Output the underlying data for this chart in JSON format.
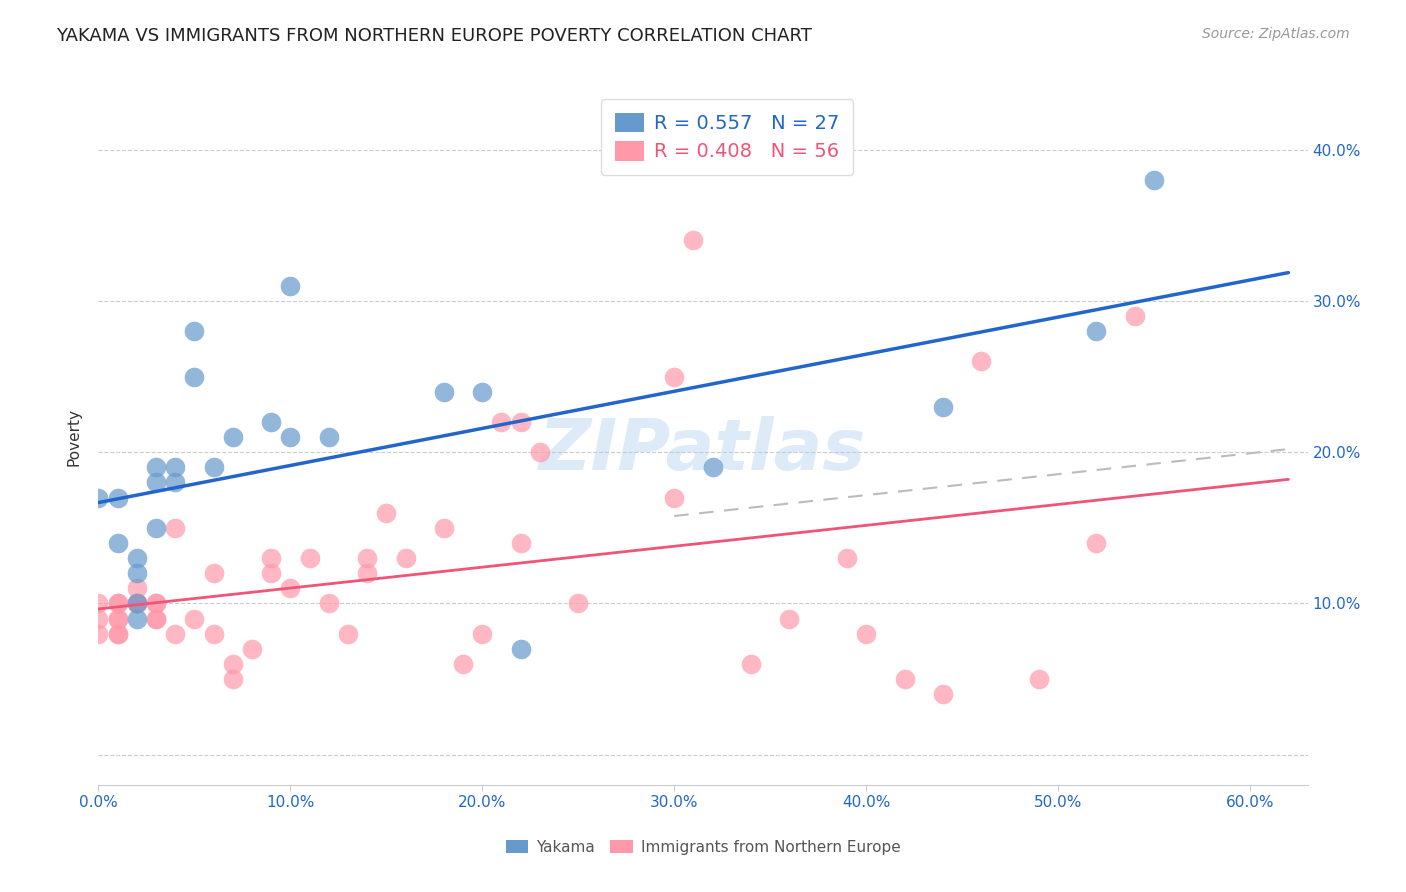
{
  "title": "YAKAMA VS IMMIGRANTS FROM NORTHERN EUROPE POVERTY CORRELATION CHART",
  "source": "Source: ZipAtlas.com",
  "ylabel": "Poverty",
  "xlim": [
    0.0,
    0.63
  ],
  "ylim": [
    -0.02,
    0.44
  ],
  "yakama_R": "0.557",
  "yakama_N": "27",
  "immigrants_R": "0.408",
  "immigrants_N": "56",
  "yakama_color": "#6699CC",
  "immigrants_color": "#FF99AA",
  "line_blue": "#2266CC",
  "line_pink": "#EE5577",
  "watermark": "ZIPatlas",
  "watermark_color": "#AACCEE",
  "yakama_x": [
    0.0,
    0.01,
    0.01,
    0.02,
    0.02,
    0.02,
    0.02,
    0.03,
    0.03,
    0.03,
    0.04,
    0.04,
    0.05,
    0.05,
    0.06,
    0.07,
    0.09,
    0.1,
    0.1,
    0.12,
    0.18,
    0.2,
    0.22,
    0.32,
    0.44,
    0.52,
    0.55
  ],
  "yakama_y": [
    0.17,
    0.17,
    0.14,
    0.12,
    0.13,
    0.1,
    0.09,
    0.19,
    0.18,
    0.15,
    0.19,
    0.18,
    0.25,
    0.28,
    0.19,
    0.21,
    0.22,
    0.21,
    0.31,
    0.21,
    0.24,
    0.24,
    0.07,
    0.19,
    0.23,
    0.28,
    0.38
  ],
  "immigrants_x": [
    0.0,
    0.0,
    0.0,
    0.01,
    0.01,
    0.01,
    0.01,
    0.01,
    0.01,
    0.02,
    0.02,
    0.02,
    0.02,
    0.03,
    0.03,
    0.03,
    0.03,
    0.04,
    0.04,
    0.05,
    0.06,
    0.06,
    0.07,
    0.07,
    0.08,
    0.09,
    0.09,
    0.1,
    0.11,
    0.12,
    0.13,
    0.14,
    0.14,
    0.15,
    0.16,
    0.18,
    0.19,
    0.2,
    0.21,
    0.22,
    0.22,
    0.23,
    0.25,
    0.3,
    0.3,
    0.31,
    0.34,
    0.36,
    0.39,
    0.4,
    0.42,
    0.44,
    0.46,
    0.49,
    0.52,
    0.54
  ],
  "immigrants_y": [
    0.08,
    0.09,
    0.1,
    0.08,
    0.08,
    0.09,
    0.09,
    0.1,
    0.1,
    0.1,
    0.1,
    0.1,
    0.11,
    0.09,
    0.09,
    0.1,
    0.1,
    0.08,
    0.15,
    0.09,
    0.08,
    0.12,
    0.05,
    0.06,
    0.07,
    0.12,
    0.13,
    0.11,
    0.13,
    0.1,
    0.08,
    0.12,
    0.13,
    0.16,
    0.13,
    0.15,
    0.06,
    0.08,
    0.22,
    0.22,
    0.14,
    0.2,
    0.1,
    0.17,
    0.25,
    0.34,
    0.06,
    0.09,
    0.13,
    0.08,
    0.05,
    0.04,
    0.26,
    0.05,
    0.14,
    0.29
  ]
}
